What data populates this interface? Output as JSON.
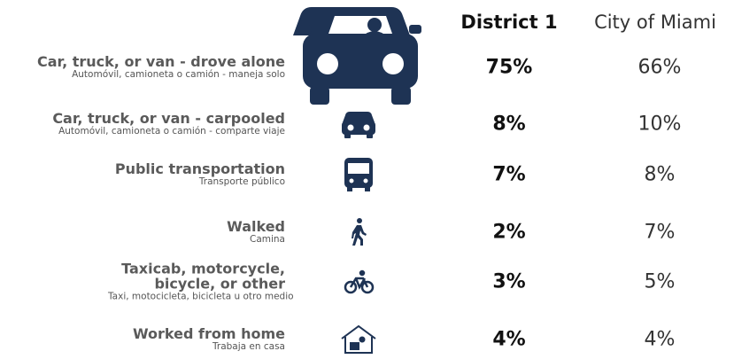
{
  "header": {
    "columns": [
      "District 1",
      "City of Miami"
    ]
  },
  "rows": [
    {
      "label": "Car, truck, or van - drove alone",
      "sublabel": "Automóvil, camioneta o camión - maneja solo",
      "district": "75%",
      "city": "66%"
    },
    {
      "label": "Car, truck, or van - carpooled",
      "sublabel": "Automóvil, camioneta o camión - comparte viaje",
      "district": "8%",
      "city": "10%"
    },
    {
      "label": "Public transportation",
      "sublabel": "Transporte público",
      "district": "7%",
      "city": "8%"
    },
    {
      "label": "Walked",
      "sublabel": "Camina",
      "district": "2%",
      "city": "7%"
    },
    {
      "label": "Taxicab, motorcycle, bicycle, or other",
      "sublabel": "Taxi, motocicleta, bicicleta u otro medio",
      "district": "3%",
      "city": "5%"
    },
    {
      "label": "Worked from home",
      "sublabel": "Trabaja en casa",
      "district": "4%",
      "city": "4%"
    }
  ]
}
